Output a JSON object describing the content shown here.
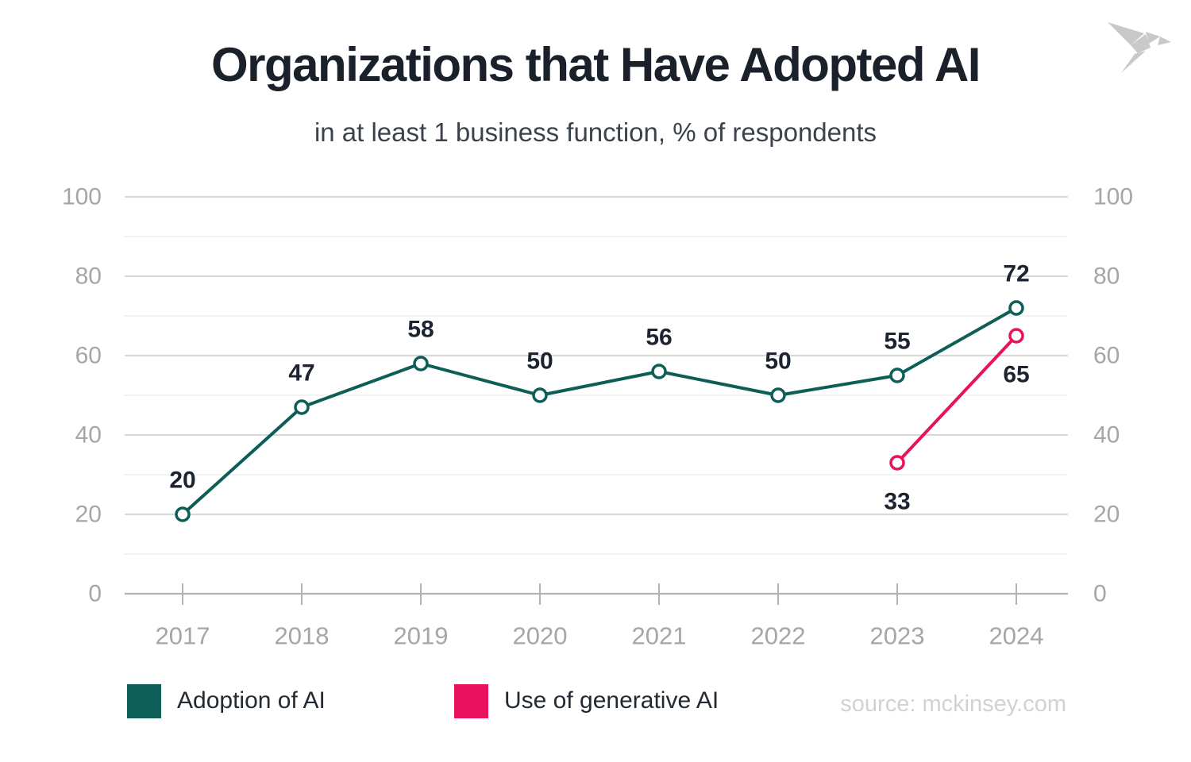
{
  "chart_data": {
    "type": "line",
    "title": "Organizations that Have Adopted AI",
    "subtitle": "in at least 1 business function, % of respondents",
    "categories": [
      "2017",
      "2018",
      "2019",
      "2020",
      "2021",
      "2022",
      "2023",
      "2024"
    ],
    "series": [
      {
        "name": "Adoption of AI",
        "color": "#0C5E56",
        "values": [
          20,
          47,
          58,
          50,
          56,
          50,
          55,
          72
        ],
        "label_position": "above"
      },
      {
        "name": "Use of generative AI",
        "color": "#E8125E",
        "values": [
          null,
          null,
          null,
          null,
          null,
          null,
          33,
          65
        ],
        "label_position": "below"
      }
    ],
    "xlabel": "",
    "ylabel": "",
    "ylim": [
      0,
      100
    ],
    "yticks": [
      0,
      20,
      40,
      60,
      80,
      100
    ],
    "minor_grid_step": 10,
    "y_axis_sides": "both",
    "grid": "horizontal",
    "legend_position": "bottom",
    "source": "source: mckinsey.com"
  },
  "logo": {
    "icon": "origami-bird-icon"
  },
  "colors": {
    "teal": "#0C5E56",
    "pink": "#E8125E",
    "title_text": "#1A212B",
    "subtitle_text": "#3A424C",
    "axis_text": "#A6A6A6",
    "label_text": "#1B2430",
    "grid_major": "#D2D2D2",
    "grid_minor": "#ECECEC",
    "axis_line": "#B3B3B3",
    "legend_text": "#222A33",
    "source_text": "#D2D2D2",
    "logo": "#C9C9C9"
  }
}
